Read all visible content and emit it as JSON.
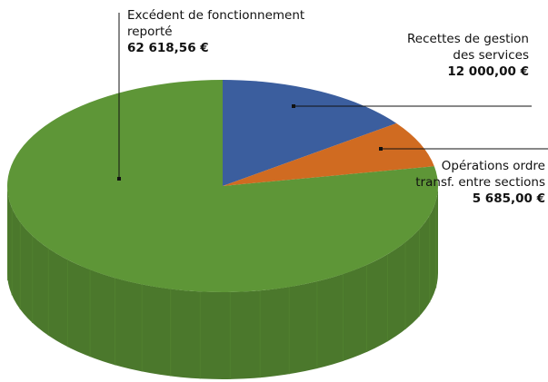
{
  "chart_data": {
    "type": "pie3d",
    "categories": [
      "Recettes de gestion des services",
      "Opérations ordre transf. entre sections",
      "Excédent de fonctionnement reporté"
    ],
    "values": [
      12000.0,
      5685.0,
      62618.56
    ],
    "value_labels": [
      "12 000,00 €",
      "5 685,00 €",
      "62 618,56 €"
    ],
    "colors": [
      "#3b5e9e",
      "#d06b21",
      "#5e9637"
    ]
  }
}
